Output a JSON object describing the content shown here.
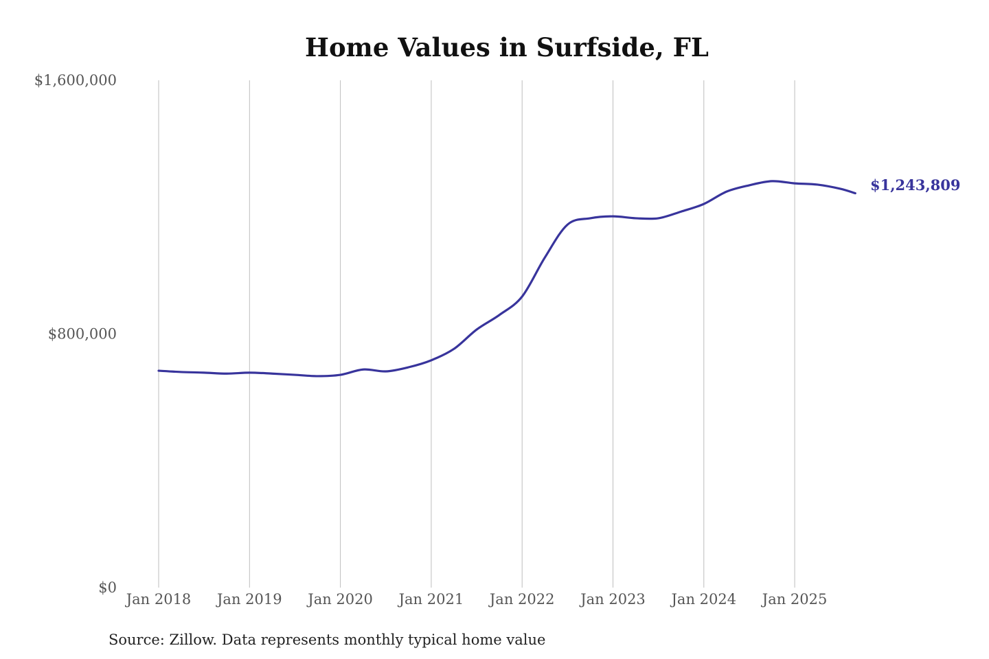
{
  "chart_data": {
    "type": "line",
    "title": "Home Values in Surfside, FL",
    "xlabel": "",
    "ylabel": "",
    "ylim": [
      0,
      1600000
    ],
    "y_ticks": [
      {
        "value": 0,
        "label": "$0"
      },
      {
        "value": 800000,
        "label": "$800,000"
      },
      {
        "value": 1600000,
        "label": "$1,600,000"
      }
    ],
    "x_ticks": [
      {
        "date": "2018-01",
        "label": "Jan 2018"
      },
      {
        "date": "2019-01",
        "label": "Jan 2019"
      },
      {
        "date": "2020-01",
        "label": "Jan 2020"
      },
      {
        "date": "2021-01",
        "label": "Jan 2021"
      },
      {
        "date": "2022-01",
        "label": "Jan 2022"
      },
      {
        "date": "2023-01",
        "label": "Jan 2023"
      },
      {
        "date": "2024-01",
        "label": "Jan 2024"
      },
      {
        "date": "2025-01",
        "label": "Jan 2025"
      }
    ],
    "grid": {
      "vertical": true,
      "horizontal": false
    },
    "legend": "none",
    "line_color": "#38349c",
    "end_label": "$1,243,809",
    "series": [
      {
        "x": [
          "2018-01",
          "2018-04",
          "2018-07",
          "2018-10",
          "2019-01",
          "2019-04",
          "2019-07",
          "2019-10",
          "2020-01",
          "2020-04",
          "2020-07",
          "2020-10",
          "2021-01",
          "2021-04",
          "2021-07",
          "2021-10",
          "2022-01",
          "2022-04",
          "2022-07",
          "2022-10",
          "2023-01",
          "2023-04",
          "2023-07",
          "2023-10",
          "2024-01",
          "2024-04",
          "2024-07",
          "2024-10",
          "2025-01",
          "2025-04",
          "2025-07",
          "2025-09"
        ],
        "values": [
          684000,
          680000,
          678000,
          675000,
          678000,
          675000,
          671000,
          667000,
          671000,
          688000,
          682000,
          695000,
          717000,
          753000,
          814000,
          860000,
          918000,
          1041000,
          1145000,
          1165000,
          1171000,
          1165000,
          1165000,
          1186000,
          1210000,
          1249000,
          1269000,
          1282000,
          1275000,
          1271000,
          1258000,
          1243809
        ]
      }
    ]
  },
  "source": "Source: Zillow. Data represents monthly typical home value"
}
